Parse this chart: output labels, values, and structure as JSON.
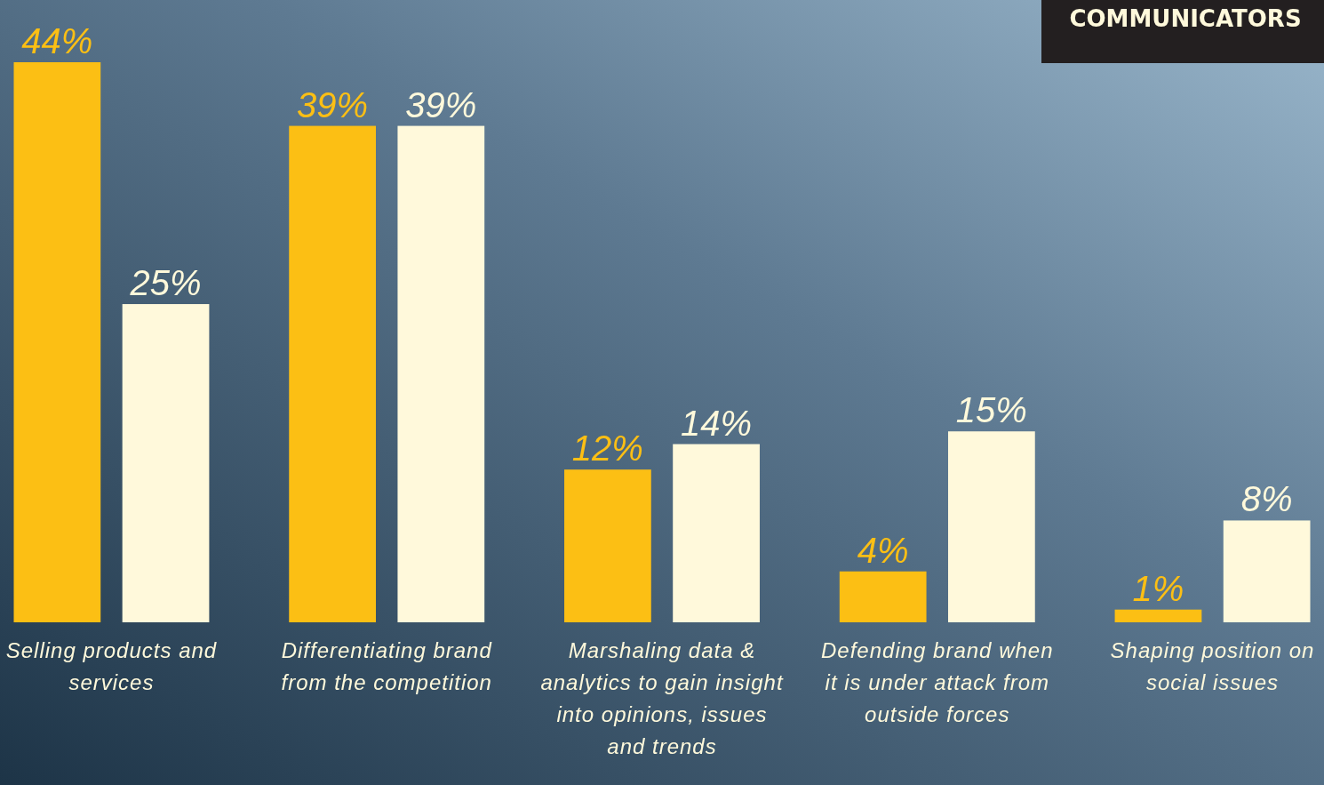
{
  "chart_data": {
    "type": "bar",
    "categories": [
      "Selling products and services",
      "Differentiating brand from the competition",
      "Marshaling data & analytics to gain insight into opinions, issues and trends",
      "Defending brand when it is under attack from outside forces",
      "Shaping position on social issues"
    ],
    "series": [
      {
        "color": "#fcbf14",
        "values": [
          44,
          39,
          12,
          4,
          1
        ],
        "value_labels": [
          "44%",
          "39%",
          "12%",
          "4%",
          "1%"
        ]
      },
      {
        "color": "#fff9db",
        "values": [
          25,
          39,
          14,
          15,
          8
        ],
        "value_labels": [
          "25%",
          "39%",
          "14%",
          "15%",
          "8%"
        ]
      }
    ],
    "annotations": [
      "COMMUNICATORS"
    ]
  }
}
